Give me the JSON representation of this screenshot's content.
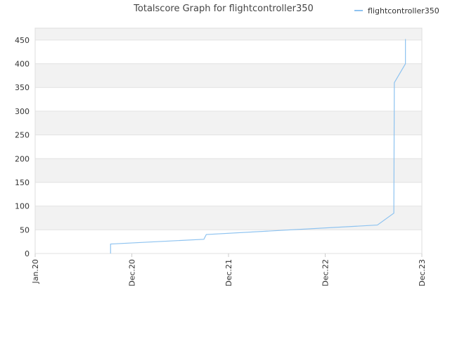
{
  "chart_data": {
    "type": "line",
    "title": "Totalscore Graph for flightcontroller350",
    "series": [
      {
        "name": "flightcontroller350",
        "color": "#8ec3f0",
        "x": [
          0.78,
          0.78,
          1.745,
          1.77,
          3.54,
          3.71,
          3.715,
          3.83,
          3.83
        ],
        "values": [
          0,
          20,
          30,
          40,
          60,
          85,
          360,
          400,
          452
        ]
      }
    ],
    "xlim": [
      0,
      4
    ],
    "xticks": [
      {
        "value": 0,
        "label": "Jan.20"
      },
      {
        "value": 1,
        "label": "Dec.20"
      },
      {
        "value": 2,
        "label": "Dec.21"
      },
      {
        "value": 3,
        "label": "Dec.22"
      },
      {
        "value": 4,
        "label": "Dec.23"
      }
    ],
    "ylim": [
      0,
      475
    ],
    "yticks": [
      0,
      50,
      100,
      150,
      200,
      250,
      300,
      350,
      400,
      450
    ],
    "grid": true,
    "legend": "top-right"
  }
}
